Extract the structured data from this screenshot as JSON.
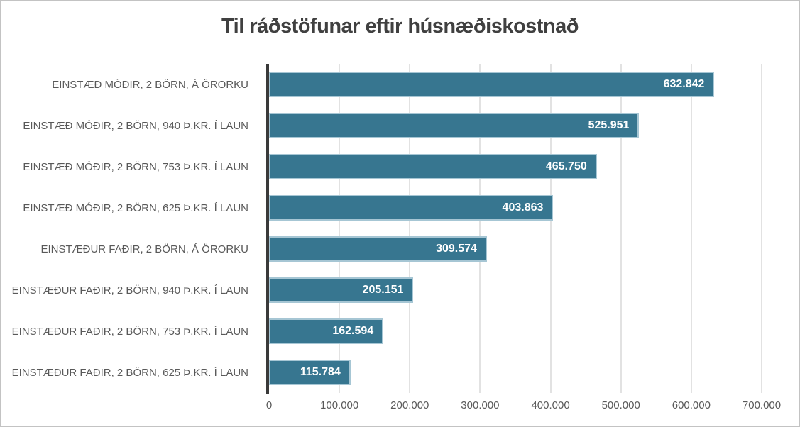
{
  "chart_data": {
    "type": "bar",
    "orientation": "horizontal",
    "title": "Til ráðstöfunar eftir húsnæðiskostnað",
    "categories": [
      "EINSTÆÐ MÓÐIR, 2 BÖRN, Á ÖRORKU",
      "EINSTÆÐ MÓÐIR, 2 BÖRN, 940 Þ.KR. Í LAUN",
      "EINSTÆÐ MÓÐIR, 2 BÖRN, 753 Þ.KR. Í LAUN",
      "EINSTÆÐ MÓÐIR, 2 BÖRN, 625 Þ.KR. Í LAUN",
      "EINSTÆÐUR FAÐIR, 2 BÖRN, Á ÖRORKU",
      "EINSTÆÐUR FAÐIR, 2 BÖRN, 940 Þ.KR. Í LAUN",
      "EINSTÆÐUR FAÐIR, 2 BÖRN, 753 Þ.KR. Í LAUN",
      "EINSTÆÐUR FAÐIR, 2 BÖRN, 625 Þ.KR. Í LAUN"
    ],
    "values": [
      632842,
      525951,
      465750,
      403863,
      309574,
      205151,
      162594,
      115784
    ],
    "value_labels": [
      "632.842",
      "525.951",
      "465.750",
      "403.863",
      "309.574",
      "205.151",
      "162.594",
      "115.784"
    ],
    "xlabel": "",
    "ylabel": "",
    "x_axis": {
      "min": 0,
      "max": 700000,
      "tick_interval": 100000,
      "tick_labels": [
        "0",
        "100.000",
        "200.000",
        "300.000",
        "400.000",
        "500.000",
        "600.000",
        "700.000"
      ]
    },
    "grid": "vertical-gridlines-on",
    "legend": "none",
    "colors": {
      "bar_fill": "#377690",
      "bar_border": "#a6c6d4",
      "axis_line": "#3a3a3a",
      "gridline": "#e2e2e2",
      "title_text": "#404040",
      "category_text": "#595959",
      "tick_text": "#595959",
      "data_label_text": "#ffffff",
      "frame_border": "#c3c3c3"
    }
  }
}
